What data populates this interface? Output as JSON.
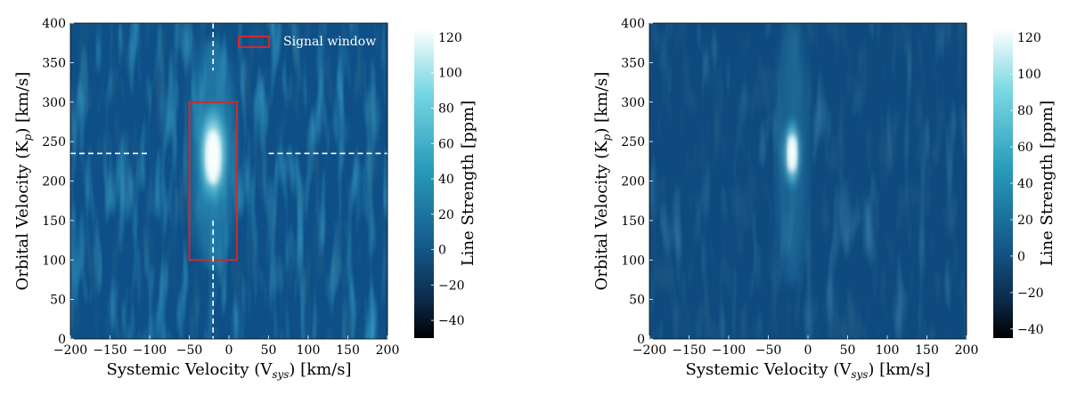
{
  "chart_data": [
    {
      "type": "heatmap",
      "xlabel": "Systemic Velocity",
      "xlabel_symbol": "(V",
      "xlabel_sub": "sys",
      "xlabel_unit": ") [km/s]",
      "ylabel": "Orbital Velocity",
      "ylabel_symbol": "(K",
      "ylabel_sub": "p",
      "ylabel_unit": ") [km/s]",
      "xlim": [
        -200,
        200
      ],
      "ylim": [
        0,
        400
      ],
      "xticks": [
        "−200",
        "−150",
        "−100",
        "−50",
        "0",
        "50",
        "100",
        "150",
        "200"
      ],
      "yticks": [
        "0",
        "50",
        "100",
        "150",
        "200",
        "250",
        "300",
        "350",
        "400"
      ],
      "colorbar": {
        "label": "Line Strength [ppm]",
        "range": [
          -50,
          125
        ],
        "ticks": [
          "−40",
          "−20",
          "0",
          "20",
          "40",
          "60",
          "80",
          "100",
          "120"
        ],
        "colors": [
          "#000000",
          "#0b3358",
          "#145a8c",
          "#2a9cbb",
          "#7ad8e3",
          "#ffffff"
        ]
      },
      "peak": {
        "x": -20,
        "y": 235,
        "value": 120
      },
      "signal_window": {
        "x": [
          -50,
          10
        ],
        "y": [
          100,
          300
        ],
        "color": "#d62728"
      },
      "crosshair": {
        "x": -20,
        "y": 235
      },
      "legend": {
        "label": "Signal window",
        "position": "top-right"
      }
    },
    {
      "type": "heatmap",
      "xlabel": "Systemic Velocity",
      "xlabel_symbol": "(V",
      "xlabel_sub": "sys",
      "xlabel_unit": ") [km/s]",
      "ylabel": "Orbital Velocity",
      "ylabel_symbol": "(K",
      "ylabel_sub": "p",
      "ylabel_unit": ") [km/s]",
      "xlim": [
        -200,
        200
      ],
      "ylim": [
        0,
        400
      ],
      "xticks": [
        "−200",
        "−150",
        "−100",
        "−50",
        "0",
        "50",
        "100",
        "150",
        "200"
      ],
      "yticks": [
        "0",
        "50",
        "100",
        "150",
        "200",
        "250",
        "300",
        "350",
        "400"
      ],
      "colorbar": {
        "label": "Line Strength [ppm]",
        "range": [
          -45,
          125
        ],
        "ticks": [
          "−40",
          "−20",
          "0",
          "20",
          "40",
          "60",
          "80",
          "100",
          "120"
        ],
        "colors": [
          "#000000",
          "#0b3358",
          "#145a8c",
          "#2a9cbb",
          "#7ad8e3",
          "#ffffff"
        ]
      },
      "peak": {
        "x": -20,
        "y": 235,
        "value": 120
      }
    }
  ]
}
